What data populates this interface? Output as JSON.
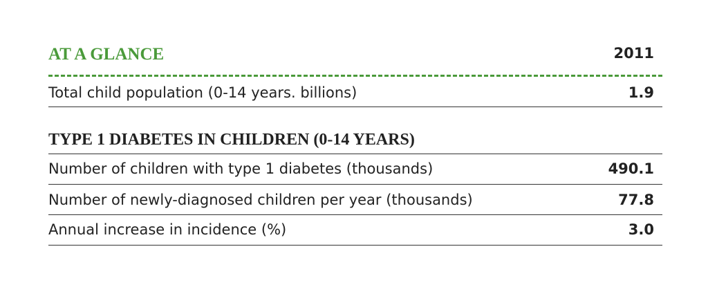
{
  "header": {
    "title": "AT A GLANCE",
    "year": "2011"
  },
  "summary": {
    "rows": [
      [
        "Total child population (0-14 years. billions)",
        "1.9"
      ]
    ]
  },
  "section": {
    "title": "TYPE 1 DIABETES IN CHILDREN (0-14 YEARS)",
    "rows": [
      [
        "Number of children with type 1 diabetes (thousands)",
        "490.1"
      ],
      [
        "Number of newly-diagnosed children per year (thousands)",
        "77.8"
      ],
      [
        "Annual increase in incidence (%)",
        "3.0"
      ]
    ]
  }
}
